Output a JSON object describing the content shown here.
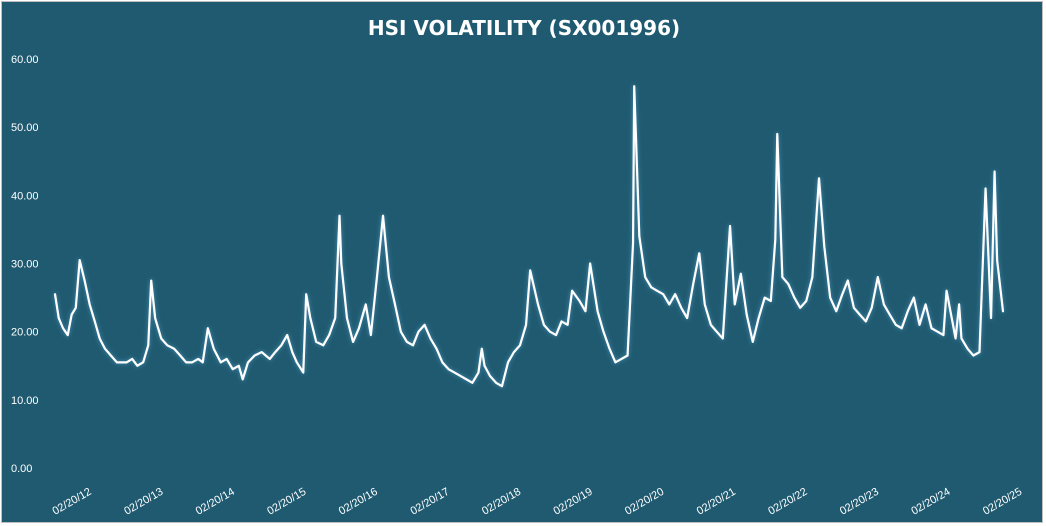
{
  "chart_data": {
    "type": "line",
    "title": "HSI VOLATILITY (SX001996)",
    "xlabel": "",
    "ylabel": "",
    "ylim": [
      0,
      60
    ],
    "yticks": [
      "0.00",
      "10.00",
      "20.00",
      "30.00",
      "40.00",
      "50.00",
      "60.00"
    ],
    "xticks": [
      "02/20/12",
      "02/20/13",
      "02/20/14",
      "02/20/15",
      "02/20/16",
      "02/20/17",
      "02/20/18",
      "02/20/19",
      "02/20/20",
      "02/20/21",
      "02/20/22",
      "02/20/23",
      "02/20/24",
      "02/20/25"
    ],
    "grid": false,
    "legend": "none",
    "colors": {
      "background": "#1f5a70",
      "line": "#ffffff",
      "text": "#ffffff"
    },
    "series": [
      {
        "x": [
          "2012-02-20",
          "2012-03-10",
          "2012-04-01",
          "2012-04-25",
          "2012-05-15",
          "2012-06-05",
          "2012-06-25",
          "2012-07-20",
          "2012-08-15",
          "2012-09-10",
          "2012-10-05",
          "2012-11-01",
          "2012-12-01",
          "2013-01-01",
          "2013-02-20",
          "2013-03-20",
          "2013-04-15",
          "2013-05-15",
          "2013-06-10",
          "2013-06-25",
          "2013-07-15",
          "2013-08-15",
          "2013-09-15",
          "2013-10-20",
          "2013-11-20",
          "2013-12-20",
          "2014-01-20",
          "2014-02-20",
          "2014-03-15",
          "2014-04-10",
          "2014-05-10",
          "2014-06-15",
          "2014-07-15",
          "2014-08-15",
          "2014-09-15",
          "2014-10-05",
          "2014-11-01",
          "2014-12-05",
          "2015-01-10",
          "2015-02-20",
          "2015-03-20",
          "2015-04-20",
          "2015-05-20",
          "2015-06-15",
          "2015-07-08",
          "2015-08-10",
          "2015-08-25",
          "2015-09-15",
          "2015-10-15",
          "2015-11-20",
          "2015-12-20",
          "2016-01-20",
          "2016-02-11",
          "2016-02-20",
          "2016-03-20",
          "2016-04-20",
          "2016-05-20",
          "2016-06-24",
          "2016-07-20",
          "2016-08-20",
          "2016-09-20",
          "2016-10-20",
          "2016-11-20",
          "2016-12-20",
          "2017-01-20",
          "2017-02-20",
          "2017-03-20",
          "2017-04-20",
          "2017-05-20",
          "2017-06-20",
          "2017-07-20",
          "2017-08-20",
          "2017-09-20",
          "2017-10-20",
          "2017-11-20",
          "2017-12-20",
          "2018-01-20",
          "2018-02-06",
          "2018-02-20",
          "2018-03-20",
          "2018-04-20",
          "2018-05-20",
          "2018-06-20",
          "2018-07-20",
          "2018-08-20",
          "2018-09-20",
          "2018-10-11",
          "2018-11-20",
          "2018-12-20",
          "2019-01-20",
          "2019-02-20",
          "2019-03-20",
          "2019-04-20",
          "2019-05-13",
          "2019-06-20",
          "2019-07-20",
          "2019-08-13",
          "2019-09-20",
          "2019-10-20",
          "2019-11-20",
          "2019-12-20",
          "2020-01-20",
          "2020-02-20",
          "2020-03-19",
          "2020-03-25",
          "2020-04-20",
          "2020-05-20",
          "2020-06-20",
          "2020-07-20",
          "2020-08-20",
          "2020-09-20",
          "2020-10-20",
          "2020-11-20",
          "2020-12-20",
          "2021-01-20",
          "2021-02-20",
          "2021-03-20",
          "2021-04-20",
          "2021-05-20",
          "2021-06-20",
          "2021-07-27",
          "2021-08-20",
          "2021-09-20",
          "2021-10-20",
          "2021-11-20",
          "2021-12-20",
          "2022-01-20",
          "2022-02-20",
          "2022-03-15",
          "2022-03-25",
          "2022-04-20",
          "2022-05-20",
          "2022-06-20",
          "2022-07-20",
          "2022-08-20",
          "2022-09-20",
          "2022-10-24",
          "2022-11-20",
          "2022-12-20",
          "2023-01-20",
          "2023-02-20",
          "2023-03-20",
          "2023-04-20",
          "2023-05-20",
          "2023-06-20",
          "2023-07-20",
          "2023-08-20",
          "2023-09-20",
          "2023-10-20",
          "2023-11-20",
          "2023-12-20",
          "2024-01-20",
          "2024-02-20",
          "2024-03-20",
          "2024-04-20",
          "2024-05-20",
          "2024-06-20",
          "2024-07-20",
          "2024-08-05",
          "2024-09-20",
          "2024-10-08",
          "2024-10-20",
          "2024-11-20",
          "2024-12-20",
          "2025-01-20",
          "2025-02-20",
          "2025-03-20",
          "2025-04-07",
          "2025-04-20",
          "2025-05-20"
        ],
        "values": [
          25.5,
          22.0,
          20.5,
          19.5,
          22.5,
          23.5,
          30.5,
          27.5,
          24.0,
          21.5,
          19.0,
          17.5,
          16.5,
          15.5,
          15.5,
          16.0,
          15.0,
          15.5,
          18.0,
          27.5,
          22.0,
          19.0,
          18.0,
          17.5,
          16.5,
          15.5,
          15.5,
          16.0,
          15.5,
          20.5,
          17.5,
          15.5,
          16.0,
          14.5,
          15.0,
          13.0,
          15.5,
          16.5,
          17.0,
          16.0,
          17.0,
          18.0,
          19.5,
          17.0,
          15.5,
          14.0,
          25.5,
          22.0,
          18.5,
          18.0,
          19.5,
          22.0,
          37.0,
          30.0,
          22.0,
          18.5,
          20.5,
          24.0,
          19.5,
          28.0,
          37.0,
          28.0,
          24.0,
          20.0,
          18.5,
          18.0,
          20.0,
          21.0,
          19.0,
          17.5,
          15.5,
          14.5,
          14.0,
          13.5,
          13.0,
          12.5,
          14.0,
          17.5,
          15.0,
          13.5,
          12.5,
          12.0,
          15.5,
          17.0,
          18.0,
          21.0,
          29.0,
          24.0,
          21.0,
          20.0,
          19.5,
          21.5,
          21.0,
          26.0,
          24.5,
          23.0,
          30.0,
          23.0,
          20.0,
          17.5,
          15.5,
          16.0,
          16.5,
          33.0,
          56.0,
          34.0,
          28.0,
          26.5,
          26.0,
          25.5,
          24.0,
          25.5,
          23.5,
          22.0,
          27.0,
          31.5,
          24.0,
          21.0,
          20.0,
          19.0,
          35.5,
          24.0,
          28.5,
          22.5,
          18.5,
          22.0,
          25.0,
          24.5,
          33.5,
          49.0,
          28.0,
          27.0,
          25.0,
          23.5,
          24.5,
          28.0,
          42.5,
          32.5,
          25.0,
          23.0,
          25.5,
          27.5,
          23.5,
          22.5,
          21.5,
          23.5,
          28.0,
          24.0,
          22.5,
          21.0,
          20.5,
          23.0,
          25.0,
          21.0,
          24.0,
          20.5,
          20.0,
          19.5,
          26.0,
          19.0,
          24.0,
          19.0,
          17.5,
          16.5,
          17.0,
          41.0,
          22.0,
          43.5,
          30.5,
          23.0
        ]
      }
    ]
  }
}
